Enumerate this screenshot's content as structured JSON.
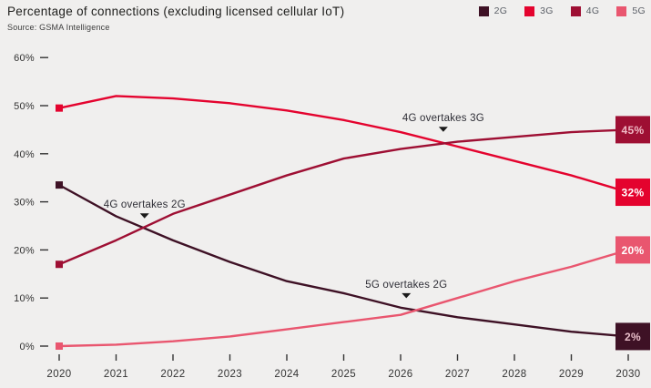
{
  "header": {
    "title": "Percentage of connections (excluding licensed cellular IoT)",
    "source": "Source: GSMA Intelligence"
  },
  "legend": {
    "items": [
      {
        "label": "2G",
        "color": "#3e1125"
      },
      {
        "label": "3G",
        "color": "#e4032e"
      },
      {
        "label": "4G",
        "color": "#9e0f33"
      },
      {
        "label": "5G",
        "color": "#e9566f"
      }
    ]
  },
  "chart_data": {
    "type": "line",
    "title": "Percentage of connections (excluding licensed cellular IoT)",
    "subtitle": "Source: GSMA Intelligence",
    "x": [
      2020,
      2021,
      2022,
      2023,
      2024,
      2025,
      2026,
      2027,
      2028,
      2029,
      2030
    ],
    "ylim": [
      0,
      60
    ],
    "y_ticks": [
      60,
      50,
      40,
      30,
      20,
      10,
      0
    ],
    "y_tick_suffix": "%",
    "grid": false,
    "legend_position": "top-right",
    "series": [
      {
        "name": "2G",
        "color": "#3e1125",
        "values": [
          33.5,
          27,
          22,
          17.5,
          13.5,
          11,
          8,
          6,
          4.5,
          3,
          2
        ],
        "end_label": "2%",
        "end_label_text_color": "#e9bfca"
      },
      {
        "name": "3G",
        "color": "#e4032e",
        "values": [
          49.5,
          52,
          51.5,
          50.5,
          49,
          47,
          44.5,
          41.5,
          38.5,
          35.5,
          32
        ],
        "end_label": "32%",
        "end_label_text_color": "#ffffff"
      },
      {
        "name": "4G",
        "color": "#9e0f33",
        "values": [
          17,
          22,
          27.5,
          31.5,
          35.5,
          39,
          41,
          42.5,
          43.5,
          44.5,
          45
        ],
        "end_label": "45%",
        "end_label_text_color": "#f0b9c4"
      },
      {
        "name": "5G",
        "color": "#e9566f",
        "values": [
          0,
          0.3,
          1,
          2,
          3.5,
          5,
          6.5,
          10,
          13.5,
          16.5,
          20
        ],
        "end_label": "20%",
        "end_label_text_color": "#ffffff"
      }
    ],
    "annotations": [
      {
        "text": "4G overtakes 2G",
        "year": 2021.5,
        "value": 29.5
      },
      {
        "text": "4G overtakes 3G",
        "year": 2026.75,
        "value": 47.5
      },
      {
        "text": "5G overtakes 2G",
        "year": 2026.1,
        "value": 12.9
      }
    ],
    "annotation_marker": "down-triangle",
    "axis_text_color": "#333333",
    "annotation_text_color": "#2e2e36",
    "background_color": "#f0efee"
  }
}
